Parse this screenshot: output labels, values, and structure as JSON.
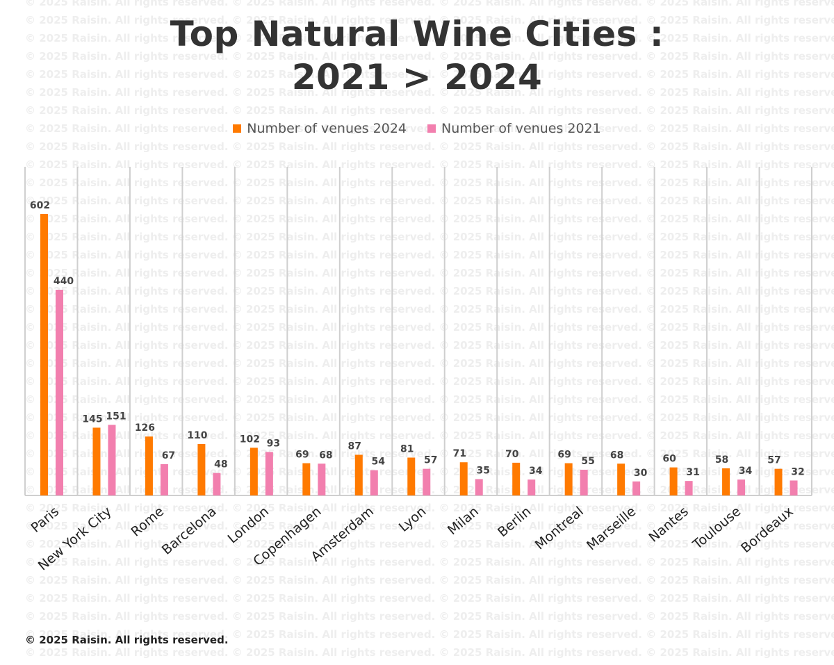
{
  "watermark": "© 2025 Raisin. All rights reserved.",
  "footer": "© 2025 Raisin. All rights reserved.",
  "colors": {
    "series_2024": "#ff7a00",
    "series_2021": "#f27fae",
    "title": "#333333",
    "gridline": "#cccccc"
  },
  "chart_data": {
    "type": "bar",
    "title_line1": "Top Natural Wine Cities :",
    "title_line2": "2021 > 2024",
    "categories": [
      "Paris",
      "New York City",
      "Rome",
      "Barcelona",
      "London",
      "Copenhagen",
      "Amsterdam",
      "Lyon",
      "Milan",
      "Berlin",
      "Montreal",
      "Marseille",
      "Nantes",
      "Toulouse",
      "Bordeaux"
    ],
    "series": [
      {
        "name": "Number of venues  2024",
        "color": "#ff7a00",
        "values": [
          602,
          145,
          126,
          110,
          102,
          69,
          87,
          81,
          71,
          70,
          69,
          68,
          60,
          58,
          57
        ]
      },
      {
        "name": "Number of venues  2021",
        "color": "#f27fae",
        "values": [
          440,
          151,
          67,
          48,
          93,
          68,
          54,
          57,
          35,
          34,
          55,
          30,
          31,
          34,
          32
        ]
      }
    ],
    "ylim": [
      0,
      700
    ],
    "grid": "vertical",
    "legend_position": "top-center",
    "data_labels": true
  }
}
